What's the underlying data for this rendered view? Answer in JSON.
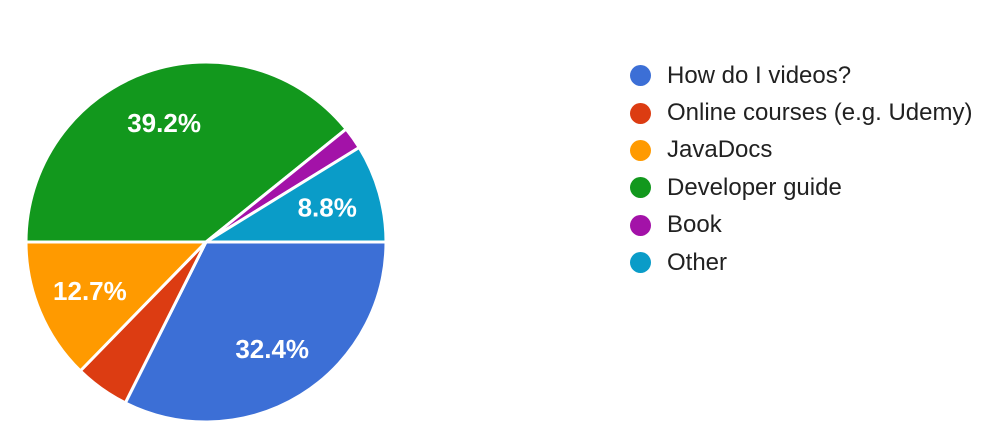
{
  "page": {
    "background_color": "#ffffff"
  },
  "chart_data": {
    "type": "pie",
    "title": "",
    "legend_position": "right",
    "start_angle_deg": 0,
    "direction": "clockwise",
    "value_unit": "percent",
    "slice_label_color": "#ffffff",
    "separator_color": "#ffffff",
    "legend_text_color": "#212121",
    "slices": [
      {
        "label": "How do I videos?",
        "value": 32.4,
        "pct_label": "32.4%",
        "color": "#3c6fd6"
      },
      {
        "label": "Online courses (e.g. Udemy)",
        "value": 4.9,
        "pct_label": null,
        "color": "#dc3c12"
      },
      {
        "label": "JavaDocs",
        "value": 12.7,
        "pct_label": "12.7%",
        "color": "#ff9a00"
      },
      {
        "label": "Developer guide",
        "value": 39.2,
        "pct_label": "39.2%",
        "color": "#12981d"
      },
      {
        "label": "Book",
        "value": 2.0,
        "pct_label": null,
        "color": "#a312a8"
      },
      {
        "label": "Other",
        "value": 8.8,
        "pct_label": "8.8%",
        "color": "#0a9cc8"
      }
    ]
  }
}
